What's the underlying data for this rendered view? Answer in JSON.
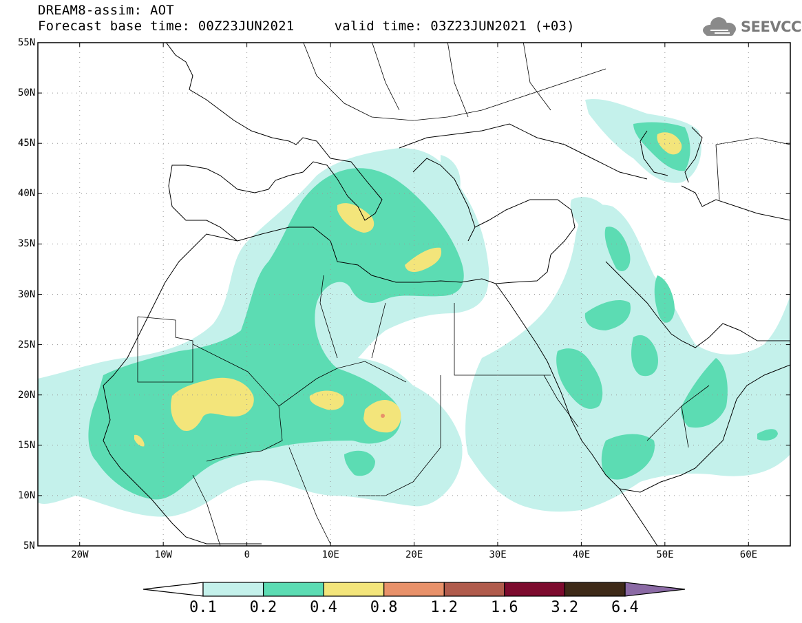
{
  "header": {
    "title_line1": "DREAM8-assim: AOT",
    "title_line2": "Forecast base time: 00Z23JUN2021     valid time: 03Z23JUN2021 (+03)"
  },
  "logo": {
    "text": "SEEVCCC",
    "icon": "cloud-icon"
  },
  "map": {
    "lat_labels": [
      "55N",
      "50N",
      "45N",
      "40N",
      "35N",
      "30N",
      "25N",
      "20N",
      "15N",
      "10N",
      "5N"
    ],
    "lat_values": [
      55,
      50,
      45,
      40,
      35,
      30,
      25,
      20,
      15,
      10,
      5
    ],
    "lon_labels": [
      "20W",
      "10W",
      "0",
      "10E",
      "20E",
      "30E",
      "40E",
      "50E",
      "60E"
    ],
    "lon_values": [
      -20,
      -10,
      0,
      10,
      20,
      30,
      40,
      50,
      60
    ],
    "lon_range": [
      -25,
      65
    ],
    "lat_range": [
      5,
      55
    ],
    "grid": "dotted"
  },
  "legend": {
    "labels": [
      "0.1",
      "0.2",
      "0.4",
      "0.8",
      "1.2",
      "1.6",
      "3.2",
      "6.4"
    ],
    "colors": [
      "#c4f1eb",
      "#5cdcb3",
      "#f3e57b",
      "#e8916a",
      "#b05b4c",
      "#7d0b2e",
      "#3e2a18",
      "#8b6aa5"
    ],
    "under_color": "#ffffff"
  }
}
